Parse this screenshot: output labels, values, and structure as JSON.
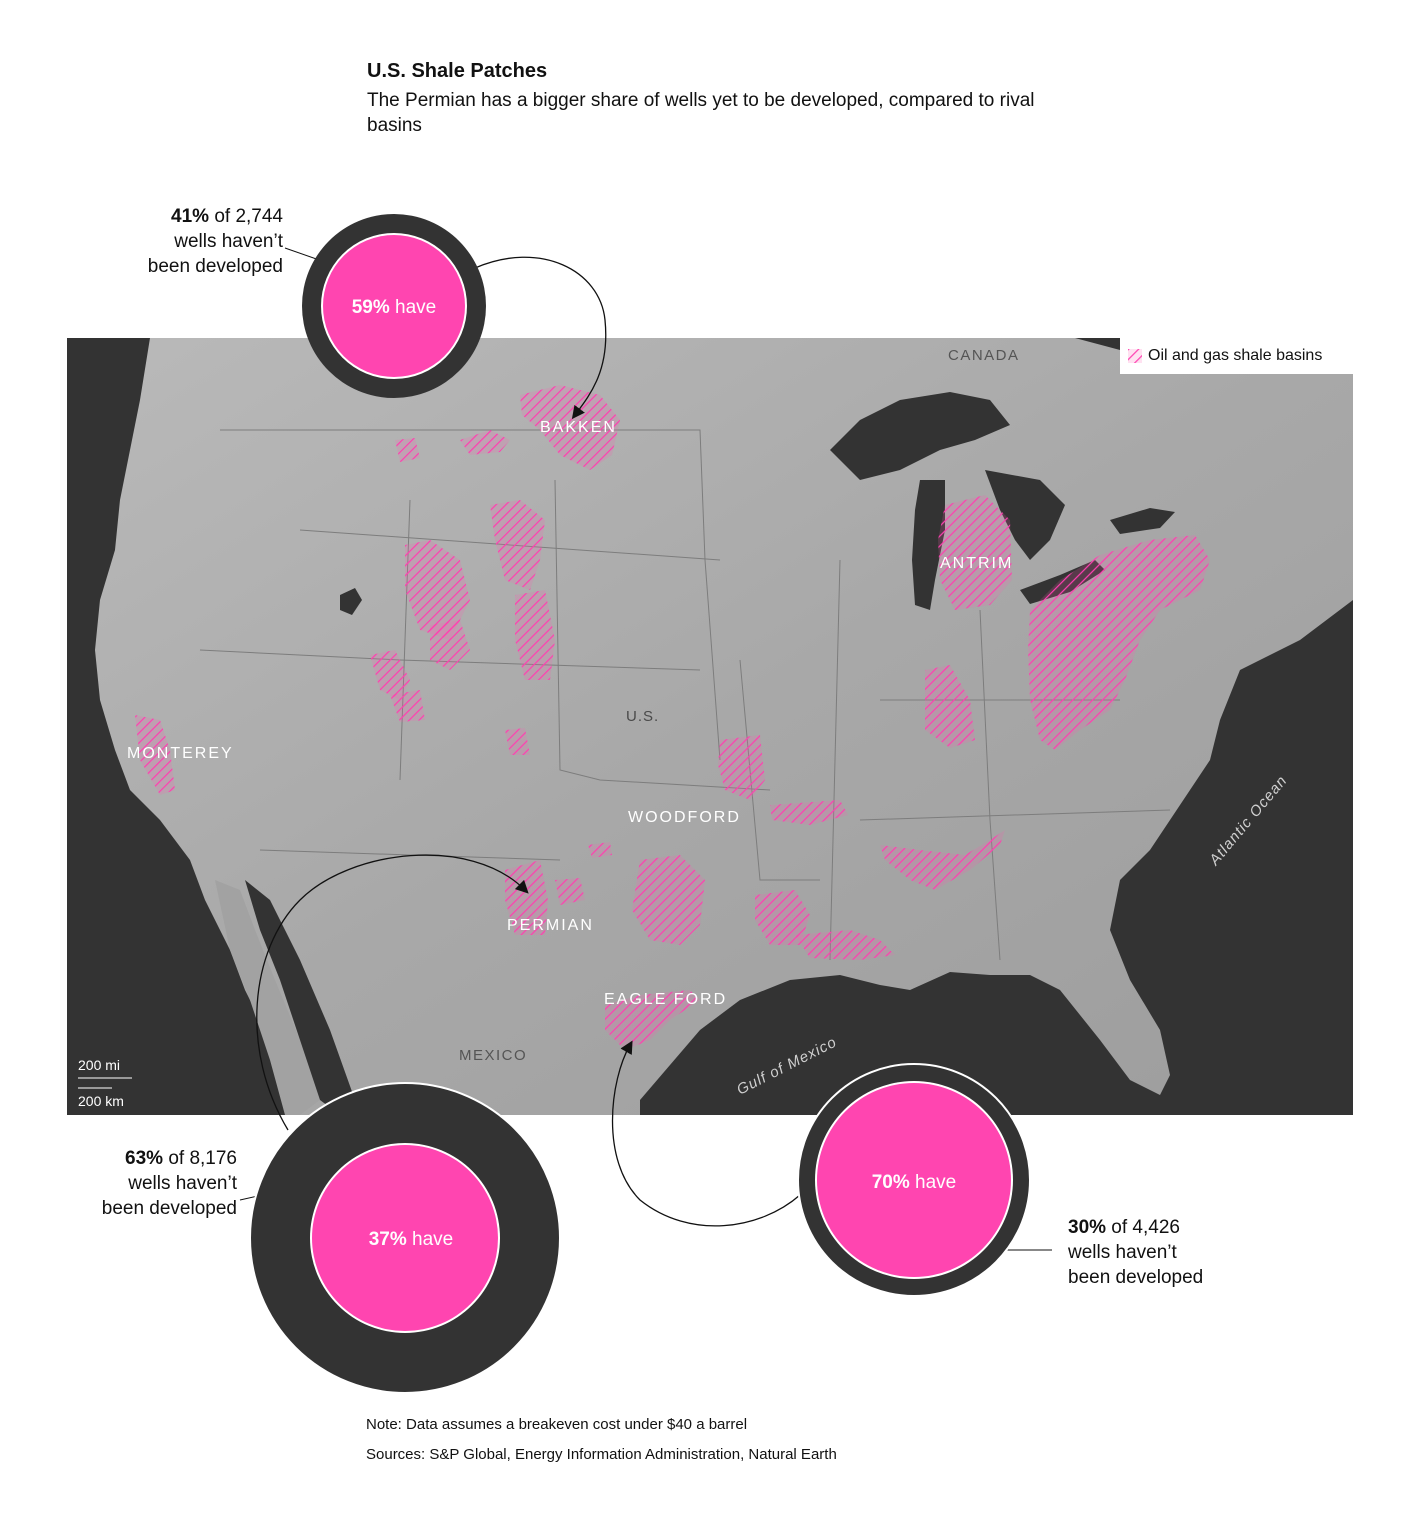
{
  "header": {
    "title": "U.S. Shale Patches",
    "subtitle": "The Permian has a bigger share of wells yet to be developed, compared to rival basins"
  },
  "legend": {
    "label": "Oil and gas shale basins",
    "color": "#ff3fb0"
  },
  "colors": {
    "developed": "#ff45b0",
    "undeveloped": "#333333",
    "map_bg": "#333333",
    "land": "#a9a9a9"
  },
  "map_labels": {
    "canada": "CANADA",
    "us": "U.S.",
    "mexico": "MEXICO",
    "gulf": "Gulf of Mexico",
    "atlantic": "Atlantic Ocean",
    "bakken": "BAKKEN",
    "antrim": "ANTRIM",
    "monterey": "MONTEREY",
    "woodford": "WOODFORD",
    "permian": "PERMIAN",
    "eagle_ford": "EAGLE FORD"
  },
  "scale_bar": {
    "miles": "200 mi",
    "km": "200 km"
  },
  "callouts": {
    "bakken": {
      "pct_undeveloped": "41%",
      "rest_line1": " of 2,744",
      "line2": "wells haven’t",
      "line3": "been developed",
      "donut_pct": "59%",
      "donut_text": " have",
      "developed_share": 0.59
    },
    "permian": {
      "pct_undeveloped": "63%",
      "rest_line1": " of 8,176",
      "line2": "wells haven’t",
      "line3": "been developed",
      "donut_pct": "37%",
      "donut_text": " have",
      "developed_share": 0.37
    },
    "eagle_ford": {
      "pct_undeveloped": "30%",
      "rest_line1": " of 4,426",
      "line2": "wells haven’t",
      "line3": "been developed",
      "donut_pct": "70%",
      "donut_text": " have",
      "developed_share": 0.7
    }
  },
  "footer": {
    "note": "Note: Data assumes a breakeven cost under $40 a barrel",
    "sources": "Sources: S&P Global, Energy Information Administration, Natural Earth"
  }
}
